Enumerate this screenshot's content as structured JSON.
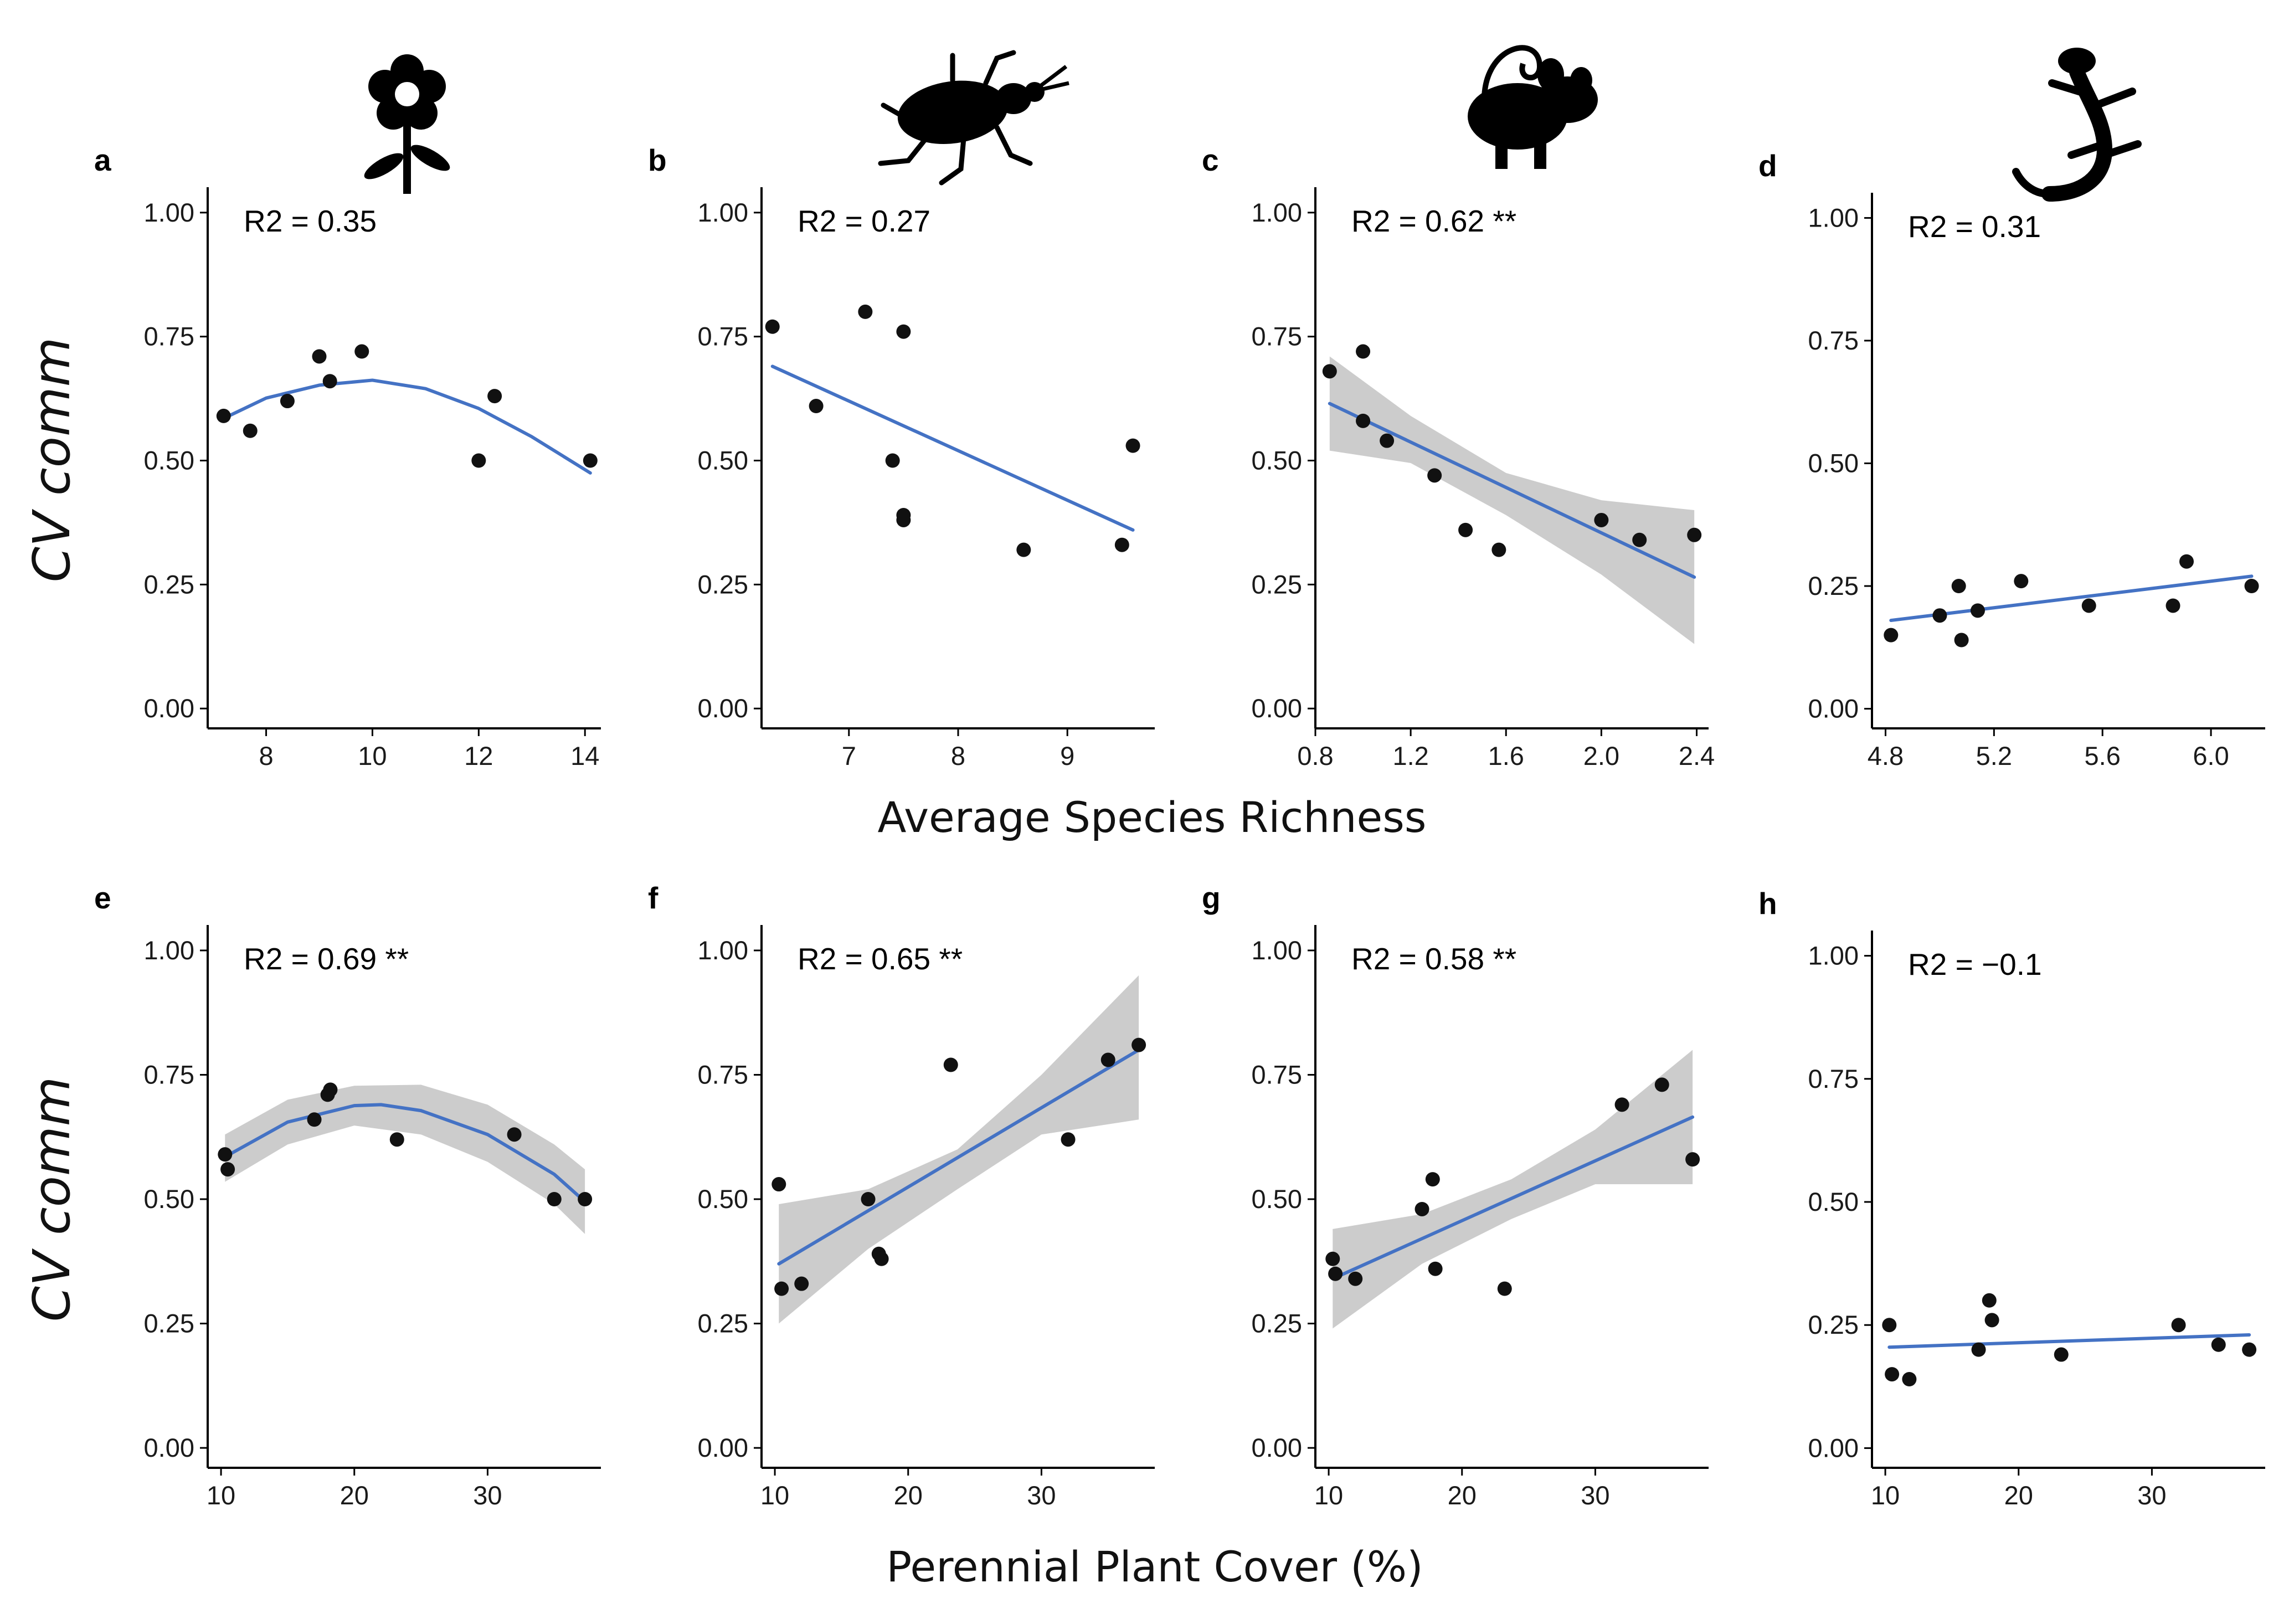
{
  "colors": {
    "line": "#4472C4",
    "band": "#CCCCCC",
    "point": "#111111",
    "axis": "#000000"
  },
  "labels": {
    "ylabel": "CV comm",
    "xlabel_top": "Average Species Richness",
    "xlabel_bottom": "Perennial Plant Cover (%)"
  },
  "icons": [
    "flower-icon",
    "beetle-icon",
    "mouse-icon",
    "lizard-icon"
  ],
  "chart_data": [
    {
      "id": "a",
      "type": "scatter",
      "panel": "a",
      "r2": "R2 = 0.35",
      "fit": "quadratic",
      "band": false,
      "xlim": [
        6.9,
        14.3
      ],
      "ylim": [
        -0.04,
        1.04
      ],
      "xticks": [
        8,
        10,
        12,
        14
      ],
      "xtick_labels": [
        "8",
        "10",
        "12",
        "14"
      ],
      "yticks": [
        0,
        0.25,
        0.5,
        0.75,
        1
      ],
      "ytick_labels": [
        "0.00",
        "0.25",
        "0.50",
        "0.75",
        "1.00"
      ],
      "x": [
        7.2,
        7.7,
        8.4,
        9.0,
        9.2,
        9.8,
        12.0,
        12.3,
        14.1
      ],
      "y": [
        0.59,
        0.56,
        0.62,
        0.71,
        0.66,
        0.72,
        0.5,
        0.63,
        0.5
      ],
      "fit_points": [
        [
          7.2,
          0.585
        ],
        [
          8.0,
          0.626
        ],
        [
          9.0,
          0.652
        ],
        [
          10.0,
          0.662
        ],
        [
          11.0,
          0.645
        ],
        [
          12.0,
          0.605
        ],
        [
          13.0,
          0.548
        ],
        [
          14.1,
          0.475
        ]
      ],
      "band_upper": [],
      "band_lower": []
    },
    {
      "id": "b",
      "type": "scatter",
      "panel": "b",
      "r2": "R2 = 0.27",
      "fit": "linear",
      "band": false,
      "xlim": [
        6.2,
        9.8
      ],
      "ylim": [
        -0.04,
        1.04
      ],
      "xticks": [
        7,
        8,
        9
      ],
      "xtick_labels": [
        "7",
        "8",
        "9"
      ],
      "yticks": [
        0,
        0.25,
        0.5,
        0.75,
        1
      ],
      "ytick_labels": [
        "0.00",
        "0.25",
        "0.50",
        "0.75",
        "1.00"
      ],
      "x": [
        6.3,
        6.7,
        7.15,
        7.4,
        7.5,
        7.5,
        7.5,
        8.6,
        9.5,
        9.6
      ],
      "y": [
        0.77,
        0.61,
        0.8,
        0.5,
        0.76,
        0.39,
        0.38,
        0.32,
        0.33,
        0.53
      ],
      "fit_points": [
        [
          6.3,
          0.69
        ],
        [
          9.6,
          0.36
        ]
      ],
      "band_upper": [],
      "band_lower": []
    },
    {
      "id": "c",
      "type": "scatter",
      "panel": "c",
      "r2": "R2 = 0.62 **",
      "fit": "linear",
      "band": true,
      "xlim": [
        0.8,
        2.45
      ],
      "ylim": [
        -0.04,
        1.04
      ],
      "xticks": [
        0.8,
        1.2,
        1.6,
        2.0,
        2.4
      ],
      "xtick_labels": [
        "0.8",
        "1.2",
        "1.6",
        "2.0",
        "2.4"
      ],
      "yticks": [
        0,
        0.25,
        0.5,
        0.75,
        1
      ],
      "ytick_labels": [
        "0.00",
        "0.25",
        "0.50",
        "0.75",
        "1.00"
      ],
      "x": [
        0.86,
        1.0,
        1.0,
        1.1,
        1.3,
        1.43,
        1.57,
        2.0,
        2.16,
        2.39
      ],
      "y": [
        0.68,
        0.72,
        0.58,
        0.54,
        0.47,
        0.36,
        0.32,
        0.38,
        0.34,
        0.35
      ],
      "fit_points": [
        [
          0.86,
          0.615
        ],
        [
          2.39,
          0.265
        ]
      ],
      "band_upper": [
        [
          0.86,
          0.71
        ],
        [
          1.2,
          0.59
        ],
        [
          1.6,
          0.475
        ],
        [
          2.0,
          0.42
        ],
        [
          2.39,
          0.4
        ]
      ],
      "band_lower": [
        [
          0.86,
          0.52
        ],
        [
          1.2,
          0.495
        ],
        [
          1.6,
          0.39
        ],
        [
          2.0,
          0.27
        ],
        [
          2.39,
          0.13
        ]
      ]
    },
    {
      "id": "d",
      "type": "scatter",
      "panel": "d",
      "r2": "R2 = 0.31",
      "fit": "linear",
      "band": false,
      "xlim": [
        4.75,
        6.2
      ],
      "ylim": [
        -0.04,
        1.04
      ],
      "xticks": [
        4.8,
        5.2,
        5.6,
        6.0
      ],
      "xtick_labels": [
        "4.8",
        "5.2",
        "5.6",
        "6.0"
      ],
      "yticks": [
        0,
        0.25,
        0.5,
        0.75,
        1
      ],
      "ytick_labels": [
        "0.00",
        "0.25",
        "0.50",
        "0.75",
        "1.00"
      ],
      "x": [
        4.82,
        5.0,
        5.07,
        5.08,
        5.14,
        5.3,
        5.55,
        5.86,
        5.91,
        6.15
      ],
      "y": [
        0.15,
        0.19,
        0.25,
        0.14,
        0.2,
        0.26,
        0.21,
        0.21,
        0.3,
        0.25
      ],
      "fit_points": [
        [
          4.82,
          0.18
        ],
        [
          6.15,
          0.27
        ]
      ],
      "band_upper": [],
      "band_lower": []
    },
    {
      "id": "e",
      "type": "scatter",
      "panel": "e",
      "r2": "R2 = 0.69 **",
      "fit": "quadratic",
      "band": true,
      "xlim": [
        9.0,
        38.5
      ],
      "ylim": [
        -0.04,
        1.04
      ],
      "xticks": [
        10,
        20,
        30
      ],
      "xtick_labels": [
        "10",
        "20",
        "30"
      ],
      "yticks": [
        0,
        0.25,
        0.5,
        0.75,
        1
      ],
      "ytick_labels": [
        "0.00",
        "0.25",
        "0.50",
        "0.75",
        "1.00"
      ],
      "x": [
        10.3,
        10.5,
        17.0,
        18.0,
        18.2,
        23.2,
        32.0,
        35.0,
        37.3
      ],
      "y": [
        0.59,
        0.56,
        0.66,
        0.71,
        0.72,
        0.62,
        0.63,
        0.5,
        0.5
      ],
      "fit_points": [
        [
          10.3,
          0.585
        ],
        [
          15.0,
          0.655
        ],
        [
          20.0,
          0.688
        ],
        [
          22.0,
          0.69
        ],
        [
          25.0,
          0.678
        ],
        [
          30.0,
          0.63
        ],
        [
          35.0,
          0.55
        ],
        [
          37.3,
          0.495
        ]
      ],
      "band_upper": [
        [
          10.3,
          0.63
        ],
        [
          15.0,
          0.7
        ],
        [
          20.0,
          0.728
        ],
        [
          25.0,
          0.73
        ],
        [
          30.0,
          0.69
        ],
        [
          35.0,
          0.61
        ],
        [
          37.3,
          0.56
        ]
      ],
      "band_lower": [
        [
          10.3,
          0.535
        ],
        [
          15.0,
          0.61
        ],
        [
          20.0,
          0.648
        ],
        [
          25.0,
          0.63
        ],
        [
          30.0,
          0.575
        ],
        [
          35.0,
          0.49
        ],
        [
          37.3,
          0.43
        ]
      ]
    },
    {
      "id": "f",
      "type": "scatter",
      "panel": "f",
      "r2": "R2 = 0.65 **",
      "fit": "linear",
      "band": true,
      "xlim": [
        9.0,
        38.5
      ],
      "ylim": [
        -0.04,
        1.04
      ],
      "xticks": [
        10,
        20,
        30
      ],
      "xtick_labels": [
        "10",
        "20",
        "30"
      ],
      "yticks": [
        0,
        0.25,
        0.5,
        0.75,
        1
      ],
      "ytick_labels": [
        "0.00",
        "0.25",
        "0.50",
        "0.75",
        "1.00"
      ],
      "x": [
        10.3,
        10.5,
        12.0,
        17.0,
        17.8,
        18.0,
        23.2,
        32.0,
        35.0,
        37.3
      ],
      "y": [
        0.53,
        0.32,
        0.33,
        0.5,
        0.39,
        0.38,
        0.77,
        0.62,
        0.78,
        0.81
      ],
      "fit_points": [
        [
          10.3,
          0.37
        ],
        [
          37.3,
          0.8
        ]
      ],
      "band_upper": [
        [
          10.3,
          0.49
        ],
        [
          17.0,
          0.52
        ],
        [
          23.7,
          0.6
        ],
        [
          30.0,
          0.75
        ],
        [
          37.3,
          0.95
        ]
      ],
      "band_lower": [
        [
          10.3,
          0.25
        ],
        [
          17.0,
          0.4
        ],
        [
          23.7,
          0.52
        ],
        [
          30.0,
          0.63
        ],
        [
          37.3,
          0.66
        ]
      ]
    },
    {
      "id": "g",
      "type": "scatter",
      "panel": "g",
      "r2": "R2 = 0.58 **",
      "fit": "linear",
      "band": true,
      "xlim": [
        9.0,
        38.5
      ],
      "ylim": [
        -0.04,
        1.04
      ],
      "xticks": [
        10,
        20,
        30
      ],
      "xtick_labels": [
        "10",
        "20",
        "30"
      ],
      "yticks": [
        0,
        0.25,
        0.5,
        0.75,
        1
      ],
      "ytick_labels": [
        "0.00",
        "0.25",
        "0.50",
        "0.75",
        "1.00"
      ],
      "x": [
        10.3,
        10.5,
        12.0,
        17.0,
        17.8,
        18.0,
        23.2,
        32.0,
        35.0,
        37.3
      ],
      "y": [
        0.38,
        0.35,
        0.34,
        0.48,
        0.54,
        0.36,
        0.32,
        0.69,
        0.73,
        0.58
      ],
      "fit_points": [
        [
          10.3,
          0.34
        ],
        [
          37.3,
          0.665
        ]
      ],
      "band_upper": [
        [
          10.3,
          0.44
        ],
        [
          17.0,
          0.47
        ],
        [
          23.7,
          0.54
        ],
        [
          30.0,
          0.64
        ],
        [
          37.3,
          0.8
        ]
      ],
      "band_lower": [
        [
          10.3,
          0.24
        ],
        [
          17.0,
          0.37
        ],
        [
          23.7,
          0.46
        ],
        [
          30.0,
          0.53
        ],
        [
          37.3,
          0.53
        ]
      ]
    },
    {
      "id": "h",
      "type": "scatter",
      "panel": "h",
      "r2": "R2 = −0.1",
      "fit": "linear",
      "band": false,
      "xlim": [
        9.0,
        38.5
      ],
      "ylim": [
        -0.04,
        1.04
      ],
      "xticks": [
        10,
        20,
        30
      ],
      "xtick_labels": [
        "10",
        "20",
        "30"
      ],
      "yticks": [
        0,
        0.25,
        0.5,
        0.75,
        1
      ],
      "ytick_labels": [
        "0.00",
        "0.25",
        "0.50",
        "0.75",
        "1.00"
      ],
      "x": [
        10.3,
        10.5,
        11.8,
        17.0,
        17.8,
        18.0,
        23.2,
        32.0,
        35.0,
        37.3
      ],
      "y": [
        0.25,
        0.15,
        0.14,
        0.2,
        0.3,
        0.26,
        0.19,
        0.25,
        0.21,
        0.2
      ],
      "fit_points": [
        [
          10.3,
          0.205
        ],
        [
          37.3,
          0.23
        ]
      ],
      "band_upper": [],
      "band_lower": []
    }
  ]
}
